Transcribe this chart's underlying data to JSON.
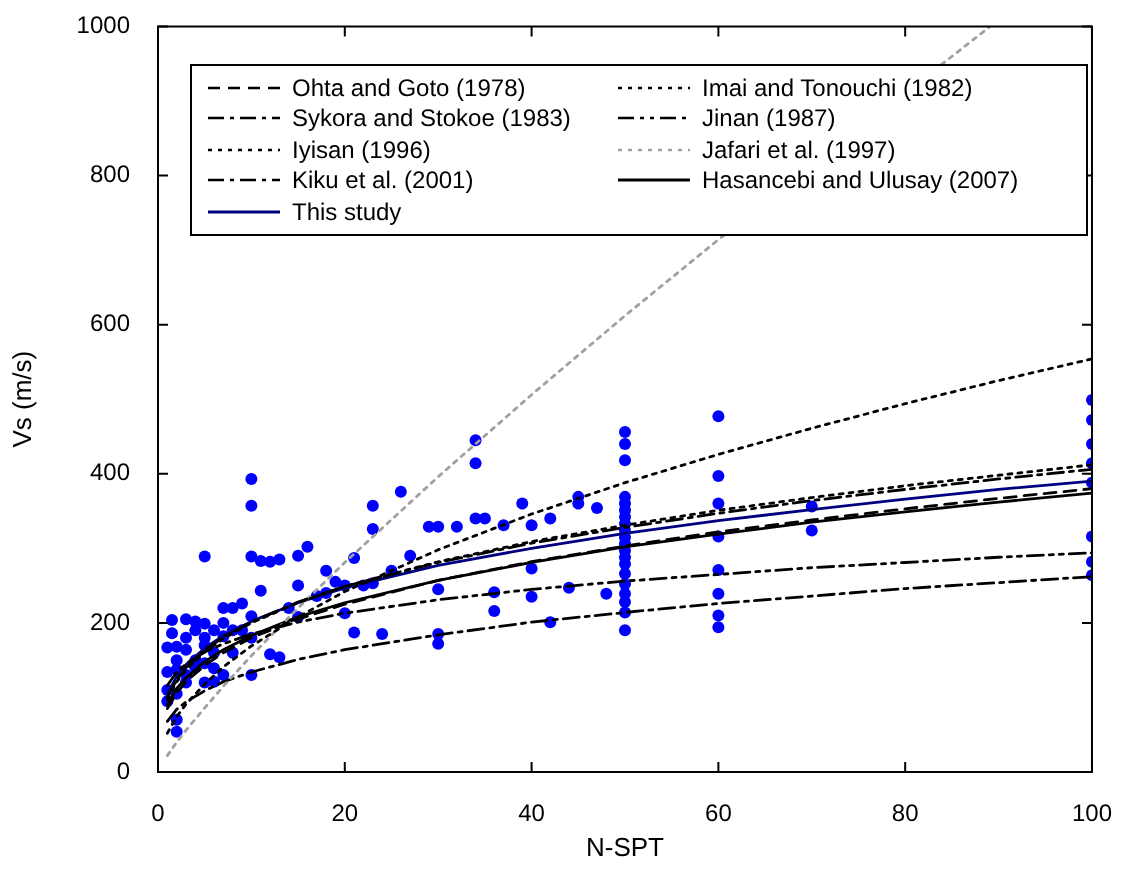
{
  "chart_data": {
    "type": "line",
    "xlabel": "N-SPT",
    "ylabel": "Vs (m/s)",
    "xlim": [
      0,
      100
    ],
    "ylim": [
      0,
      1000
    ],
    "xticks": [
      0,
      20,
      40,
      60,
      80,
      100
    ],
    "yticks": [
      0,
      200,
      400,
      600,
      800,
      1000
    ],
    "grid": false,
    "legend": "top",
    "x": [
      1,
      2,
      3,
      5,
      7,
      10,
      15,
      20,
      30,
      40,
      50,
      60,
      70,
      80,
      90,
      100
    ],
    "series": [
      {
        "name": "Ohta and Goto (1978)",
        "color": "#000000",
        "line_style": "dashed",
        "values": [
          85,
          106,
          121,
          143,
          160,
          180,
          205,
          225,
          257,
          282,
          303,
          322,
          338,
          353,
          367,
          380
        ]
      },
      {
        "name": "Imai and Tonouchi (1982)",
        "color": "#000000",
        "line_style": "dotted",
        "values": [
          97,
          121,
          137,
          161,
          179,
          200,
          227,
          249,
          282,
          309,
          331,
          351,
          368,
          384,
          398,
          412
        ]
      },
      {
        "name": "Sykora and Stokoe (1983)",
        "color": "#000000",
        "line_style": "dashdot",
        "values": [
          100,
          124,
          140,
          163,
          181,
          201,
          228,
          249,
          281,
          307,
          328,
          347,
          364,
          379,
          393,
          406
        ]
      },
      {
        "name": "Jinan (1987)",
        "color": "#000000",
        "line_style": "dashdotdot",
        "values": [
          116,
          134,
          145,
          161,
          172,
          185,
          201,
          213,
          231,
          245,
          256,
          265,
          274,
          281,
          288,
          294
        ]
      },
      {
        "name": "Iyisan (1996)",
        "color": "#000000",
        "line_style": "dotted",
        "values": [
          52,
          74,
          91,
          118,
          141,
          169,
          208,
          242,
          298,
          346,
          388,
          426,
          461,
          494,
          525,
          554
        ]
      },
      {
        "name": "Jafari et al. (1997)",
        "color": "#a0a0a0",
        "line_style": "dotted",
        "x": [
          1,
          2,
          3,
          5,
          7,
          10,
          15,
          20,
          30,
          40,
          50,
          60,
          70,
          80,
          89
        ],
        "values": [
          22,
          40,
          56,
          86,
          115,
          156,
          220,
          281,
          396,
          506,
          612,
          714,
          null,
          null,
          999
        ]
      },
      {
        "name": "Kiku et al. (2001)",
        "color": "#000000",
        "line_style": "dashdot",
        "values": [
          68,
          84,
          94,
          109,
          121,
          134,
          151,
          164,
          184,
          201,
          214,
          226,
          236,
          246,
          254,
          262
        ]
      },
      {
        "name": "Hasancebi and Ulusay (2007)",
        "color": "#000000",
        "line_style": "solid",
        "values": [
          90,
          112,
          126,
          148,
          164,
          183,
          208,
          227,
          257,
          281,
          302,
          319,
          335,
          349,
          362,
          374
        ]
      },
      {
        "name": "This study",
        "color": "#000080",
        "line_style": "solid",
        "values": [
          105,
          128,
          144,
          166,
          183,
          202,
          227,
          247,
          277,
          300,
          320,
          337,
          352,
          366,
          379,
          390
        ]
      },
      {
        "type": "scatter",
        "color": "#0000ff",
        "marker": "circle",
        "x": [
          1,
          1,
          1,
          1,
          1.5,
          1.5,
          2,
          2,
          2,
          2,
          2,
          2,
          3,
          3,
          3,
          3,
          3,
          4,
          4,
          4,
          4,
          5,
          5,
          5,
          5,
          5,
          5,
          6,
          6,
          6,
          6,
          7,
          7,
          7,
          7,
          8,
          8,
          8,
          9,
          9,
          10,
          10,
          10,
          10,
          10,
          10,
          11,
          11,
          12,
          12,
          13,
          13,
          14,
          15,
          15,
          15,
          16,
          17,
          18,
          18,
          19,
          20,
          20,
          21,
          21,
          22,
          23,
          23,
          23,
          24,
          25,
          26,
          27,
          29,
          30,
          30,
          30,
          30,
          32,
          34,
          34,
          34,
          35,
          36,
          36,
          37,
          39,
          40,
          40,
          40,
          42,
          42,
          44,
          45,
          45,
          47,
          48,
          50,
          50,
          50,
          50,
          50,
          50,
          50,
          50,
          50,
          50,
          50,
          50,
          50,
          50,
          50,
          50,
          50,
          50,
          50,
          50,
          60,
          60,
          60,
          60,
          60,
          60,
          60,
          60,
          70,
          70,
          100,
          100,
          100,
          100,
          100,
          100,
          100,
          100
        ],
        "values": [
          167,
          134,
          110,
          95,
          204,
          186,
          168,
          150,
          137,
          105,
          70,
          54,
          205,
          180,
          164,
          130,
          120,
          202,
          150,
          140,
          190,
          199,
          146,
          170,
          289,
          180,
          120,
          190,
          139,
          121,
          160,
          220,
          130,
          182,
          200,
          220,
          190,
          160,
          226,
          190,
          393,
          357,
          289,
          130,
          209,
          180,
          283,
          243,
          282,
          158,
          285,
          154,
          220,
          208,
          290,
          250,
          302,
          236,
          240,
          270,
          255,
          213,
          250,
          287,
          187,
          250,
          357,
          326,
          253,
          185,
          270,
          376,
          290,
          329,
          329,
          185,
          172,
          245,
          329,
          340,
          445,
          414,
          340,
          241,
          216,
          331,
          360,
          331,
          273,
          235,
          340,
          201,
          247,
          369,
          360,
          354,
          239,
          456,
          440,
          418,
          369,
          360,
          351,
          342,
          333,
          324,
          315,
          306,
          297,
          288,
          279,
          266,
          252,
          239,
          228,
          214,
          190,
          477,
          397,
          360,
          316,
          271,
          239,
          210,
          194,
          356,
          324,
          499,
          472,
          440,
          414,
          388,
          316,
          282,
          264
        ]
      }
    ]
  }
}
